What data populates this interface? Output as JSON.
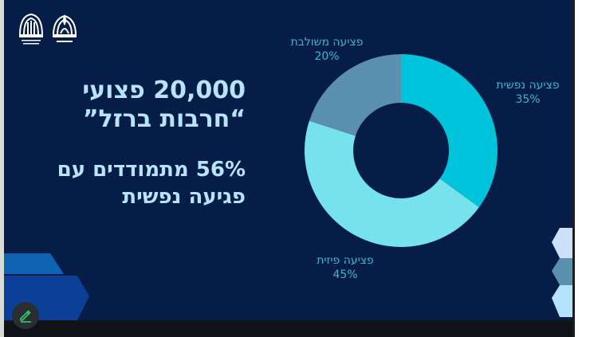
{
  "slide": {
    "headline_line1": "20,000 פצועי",
    "headline_line2": "“חרבות ברזל”",
    "subline_line1": "56% מתמודדים עם",
    "subline_line2": "פגיעה נפשית",
    "logos": [
      "ministry-of-defense-logo",
      "rehabilitation-division-logo"
    ]
  },
  "colors": {
    "background": "#051d47",
    "headline": "#b8e4fb",
    "label": "#37b8d4",
    "mental": "#00c4dc",
    "physical": "#76e2ec",
    "combined": "#5a8fae"
  },
  "chart_data": {
    "type": "pie",
    "subtype": "donut",
    "title": "",
    "categories": [
      "פציעה נפשית",
      "פציעה פיזית",
      "פציעה משולבת"
    ],
    "values": [
      35,
      45,
      20
    ],
    "unit": "%",
    "labels": [
      {
        "name": "פציעה נפשית",
        "value": "35%"
      },
      {
        "name": "פציעה פיזית",
        "value": "45%"
      },
      {
        "name": "פציעה משולבת",
        "value": "20%"
      }
    ],
    "colors": [
      "#00c4dc",
      "#76e2ec",
      "#5a8fae"
    ],
    "start_angle_deg": 0,
    "direction": "clockwise"
  },
  "toolbar": {
    "pencil_icon": "pencil-icon"
  }
}
